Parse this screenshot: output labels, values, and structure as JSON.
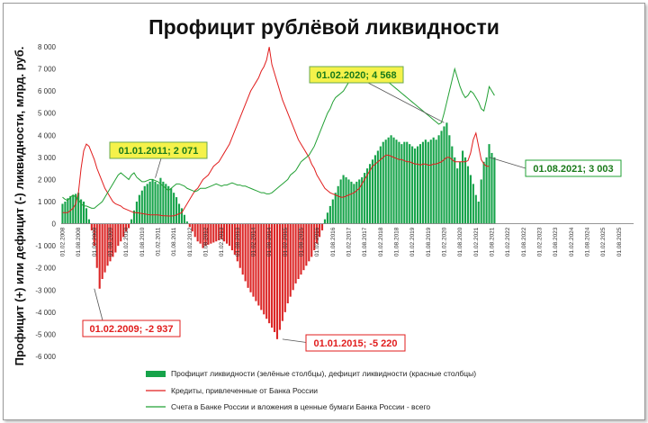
{
  "chart_data": {
    "type": "bar+line",
    "title": "Профицит рублёвой ликвидности",
    "ylabel": "Профицит (+) или дефицит (-) ликвидности, млрд. руб.",
    "ylim": [
      -6000,
      8000
    ],
    "yticks": [
      -6000,
      -5000,
      -4000,
      -3000,
      -2000,
      -1000,
      0,
      1000,
      2000,
      3000,
      4000,
      5000,
      6000,
      7000,
      8000
    ],
    "ytick_labels": [
      "-6 000",
      "-5 000",
      "-4 000",
      "-3 000",
      "-2 000",
      "-1 000",
      "0",
      "1 000",
      "2 000",
      "3 000",
      "4 000",
      "5 000",
      "6 000",
      "7 000",
      "8 000"
    ],
    "x_labels": [
      "01.02.2008",
      "01.08.2008",
      "01.02.2009",
      "01.08.2009",
      "01.02.2010",
      "01.08.2010",
      "01.02.2011",
      "01.08.2011",
      "01.02.2012",
      "01.08.2012",
      "01.02.2013",
      "01.08.2013",
      "01.02.2014",
      "01.08.2014",
      "01.02.2015",
      "01.08.2015",
      "01.02.2016",
      "01.08.2016",
      "01.02.2017",
      "01.08.2017",
      "01.02.2018",
      "01.08.2018",
      "01.02.2019",
      "01.08.2019",
      "01.02.2020",
      "01.08.2020",
      "01.02.2021",
      "01.08.2021",
      "01.02.2022",
      "01.08.2022",
      "01.02.2023",
      "01.08.2023",
      "01.02.2024",
      "01.08.2024",
      "01.02.2025",
      "01.08.2025"
    ],
    "series": [
      {
        "name": "Профицит ликвидности (зелёные столбцы), дефицит ликвидности (красные столбцы)",
        "kind": "bar",
        "color_pos": "#16a34a",
        "color_neg": "#dc2626",
        "values": [
          900,
          1000,
          1150,
          1250,
          1300,
          1350,
          1400,
          1100,
          1000,
          700,
          200,
          -300,
          -1000,
          -2000,
          -2937,
          -2500,
          -2200,
          -1900,
          -1700,
          -1500,
          -1300,
          -1000,
          -800,
          -600,
          -350,
          -200,
          200,
          600,
          1000,
          1300,
          1500,
          1700,
          1800,
          1900,
          2000,
          1900,
          1800,
          2071,
          1900,
          1800,
          1700,
          1600,
          1400,
          1200,
          900,
          700,
          400,
          100,
          -150,
          -350,
          -600,
          -800,
          -900,
          -1100,
          -1000,
          -950,
          -900,
          -850,
          -800,
          -750,
          -700,
          -800,
          -900,
          -1000,
          -1200,
          -1400,
          -1700,
          -2000,
          -2300,
          -2600,
          -2900,
          -3100,
          -3300,
          -3500,
          -3700,
          -3900,
          -4100,
          -4300,
          -4500,
          -4700,
          -4900,
          -5220,
          -4800,
          -4400,
          -4000,
          -3600,
          -3300,
          -3000,
          -2700,
          -2500,
          -2300,
          -2100,
          -1900,
          -1700,
          -1500,
          -1200,
          -900,
          -600,
          -300,
          200,
          500,
          800,
          1100,
          1400,
          1700,
          2000,
          2200,
          2100,
          2000,
          1900,
          1800,
          1900,
          2000,
          2100,
          2300,
          2500,
          2700,
          2900,
          3100,
          3300,
          3500,
          3700,
          3800,
          3900,
          4000,
          3900,
          3800,
          3700,
          3600,
          3700,
          3700,
          3600,
          3500,
          3400,
          3500,
          3600,
          3700,
          3800,
          3700,
          3800,
          3900,
          3800,
          4000,
          4200,
          4400,
          4568,
          4000,
          3500,
          3000,
          2500,
          2800,
          3300,
          3000,
          2600,
          2200,
          1800,
          1300,
          1000,
          2000,
          2800,
          3000,
          3600,
          3200,
          3003
        ],
        "bar_start": "01.02.2008",
        "bar_step": "1 month"
      },
      {
        "name": "Кредиты, привлеченные от Банка России",
        "kind": "line",
        "color": "#e11d1d",
        "values": [
          500,
          500,
          500,
          600,
          700,
          900,
          1400,
          2500,
          3300,
          3600,
          3500,
          3200,
          2900,
          2500,
          2200,
          1900,
          1600,
          1400,
          1200,
          1000,
          900,
          850,
          800,
          700,
          650,
          600,
          550,
          500,
          500,
          480,
          460,
          440,
          420,
          400,
          400,
          400,
          400,
          380,
          360,
          360,
          350,
          350,
          360,
          400,
          450,
          500,
          700,
          900,
          1100,
          1300,
          1500,
          1600,
          1800,
          2000,
          2100,
          2200,
          2400,
          2600,
          2700,
          2800,
          3000,
          3200,
          3400,
          3600,
          3900,
          4200,
          4500,
          4800,
          5100,
          5400,
          5700,
          6000,
          6200,
          6400,
          6600,
          6900,
          7100,
          7400,
          7990,
          7200,
          6800,
          6400,
          6000,
          5600,
          5300,
          5000,
          4700,
          4400,
          4100,
          3800,
          3600,
          3400,
          3200,
          3000,
          2700,
          2500,
          2200,
          2000,
          1800,
          1600,
          1500,
          1400,
          1350,
          1300,
          1250,
          1200,
          1200,
          1250,
          1300,
          1350,
          1400,
          1500,
          1600,
          1800,
          2000,
          2200,
          2400,
          2600,
          2700,
          2800,
          2900,
          3000,
          3100,
          3100,
          3050,
          3000,
          2950,
          2900,
          2900,
          2850,
          2800,
          2800,
          2750,
          2700,
          2700,
          2650,
          2700,
          2700,
          2650,
          2650,
          2700,
          2700,
          2750,
          2800,
          2900,
          3000,
          3000,
          2900,
          2800,
          2800,
          2800,
          2800,
          2800,
          2850,
          3200,
          3800,
          4100,
          3500,
          2900,
          2700,
          2600,
          2600
        ],
        "x_start": "01.02.2008",
        "x_step": "1 month"
      },
      {
        "name": "Счета в Банке России и вложения в ценные бумаги Банка России - всего",
        "kind": "line",
        "color": "#22a034",
        "values": [
          1200,
          1100,
          1050,
          1200,
          1300,
          1200,
          1100,
          900,
          800,
          800,
          750,
          700,
          700,
          800,
          900,
          1000,
          1200,
          1400,
          1600,
          1800,
          2000,
          2200,
          2300,
          2200,
          2100,
          2000,
          2200,
          2300,
          2100,
          2000,
          1900,
          1900,
          1950,
          2000,
          2000,
          1950,
          1900,
          1800,
          1700,
          1600,
          1500,
          1600,
          1700,
          1800,
          1800,
          1750,
          1700,
          1600,
          1550,
          1500,
          1450,
          1500,
          1600,
          1600,
          1600,
          1650,
          1700,
          1750,
          1800,
          1750,
          1700,
          1750,
          1750,
          1800,
          1850,
          1800,
          1750,
          1750,
          1700,
          1700,
          1650,
          1600,
          1550,
          1500,
          1450,
          1400,
          1400,
          1350,
          1350,
          1400,
          1500,
          1600,
          1700,
          1800,
          1900,
          2000,
          2200,
          2300,
          2400,
          2600,
          2800,
          2900,
          3000,
          3100,
          3300,
          3500,
          3800,
          4100,
          4400,
          4700,
          5000,
          5200,
          5500,
          5700,
          5800,
          5900,
          6000,
          6200,
          6400,
          6500,
          6600,
          6700,
          6900,
          7000,
          6800,
          6600,
          6500,
          6400,
          6500,
          6600,
          6700,
          6600,
          6500,
          6400,
          6300,
          6200,
          6100,
          6000,
          5900,
          5800,
          5700,
          5600,
          5500,
          5400,
          5300,
          5200,
          5100,
          5000,
          4900,
          4800,
          4700,
          4600,
          4500,
          4568,
          5000,
          5500,
          6000,
          6500,
          7000,
          6600,
          6200,
          5900,
          5700,
          5800,
          6000,
          5900,
          5700,
          5500,
          5200,
          5100,
          5600,
          6200,
          6000,
          5800
        ],
        "x_start": "01.02.2008",
        "x_step": "1 month"
      }
    ],
    "annotations": [
      {
        "text": "01.02.2009; -2 937",
        "style": "red"
      },
      {
        "text": "01.01.2011; 2 071",
        "style": "yellow"
      },
      {
        "text": "01.01.2015; -5 220",
        "style": "red"
      },
      {
        "text": "01.02.2020; 4 568",
        "style": "yellow"
      },
      {
        "text": "01.08.2021; 3 003",
        "style": "green"
      }
    ],
    "legend_position": "bottom-center",
    "grid": false
  }
}
